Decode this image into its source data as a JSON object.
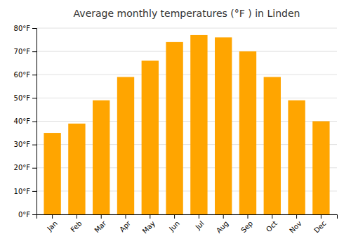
{
  "chart_data": {
    "type": "bar",
    "title": "Average monthly temperatures (°F ) in Linden",
    "categories": [
      "Jan",
      "Feb",
      "Mar",
      "Apr",
      "May",
      "Jun",
      "Jul",
      "Aug",
      "Sep",
      "Oct",
      "Nov",
      "Dec"
    ],
    "values": [
      35,
      39,
      49,
      59,
      66,
      74,
      77,
      76,
      70,
      59,
      49,
      40
    ],
    "color": "#FFA500",
    "ylim": [
      0,
      80
    ],
    "yticks": [
      {
        "value": 0,
        "label": "0°F"
      },
      {
        "value": 10,
        "label": "10°F"
      },
      {
        "value": 20,
        "label": "20°F"
      },
      {
        "value": 30,
        "label": "30°F"
      },
      {
        "value": 40,
        "label": "40°F"
      },
      {
        "value": 50,
        "label": "50°F"
      },
      {
        "value": 60,
        "label": "60°F"
      },
      {
        "value": 70,
        "label": "70°F"
      },
      {
        "value": 80,
        "label": "80°F"
      }
    ],
    "grid": true
  }
}
